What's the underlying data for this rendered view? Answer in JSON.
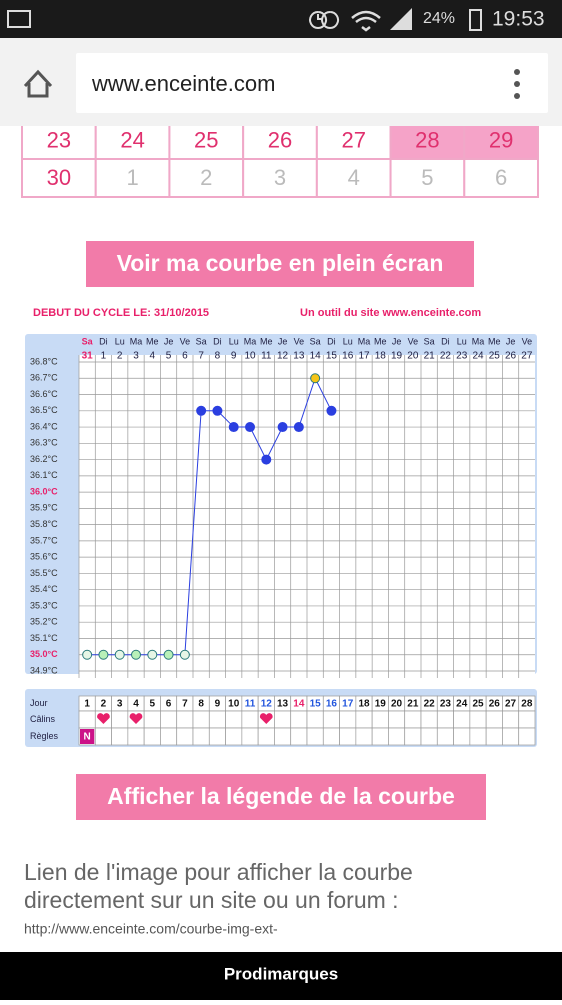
{
  "status_bar": {
    "battery": "24%",
    "time": "19:53"
  },
  "browser": {
    "url": "www.enceinte.com"
  },
  "calendar": {
    "rows": [
      [
        23,
        24,
        25,
        26,
        27,
        28,
        29
      ],
      [
        30,
        1,
        2,
        3,
        4,
        5,
        6
      ]
    ],
    "highlighted": [
      [
        0,
        5
      ],
      [
        0,
        6
      ]
    ],
    "muted": [
      [
        1,
        1
      ],
      [
        1,
        2
      ],
      [
        1,
        3
      ],
      [
        1,
        4
      ],
      [
        1,
        5
      ],
      [
        1,
        6
      ]
    ]
  },
  "buttons": [
    "Voir ma courbe en plein écran",
    "Afficher la légende de la courbe"
  ],
  "chart_data": {
    "type": "line",
    "title": "DEBUT DU CYCLE LE: 31/10/2015",
    "source": "Un outil du site www.enceinte.com",
    "day_names": [
      "Sa",
      "Di",
      "Lu",
      "Ma",
      "Me",
      "Je",
      "Ve",
      "Sa",
      "Di",
      "Lu",
      "Ma",
      "Me",
      "Je",
      "Ve",
      "Sa",
      "Di",
      "Lu",
      "Ma",
      "Me",
      "Je",
      "Ve",
      "Sa",
      "Di",
      "Lu",
      "Ma",
      "Me",
      "Je",
      "Ve"
    ],
    "categories": [
      "31",
      "1",
      "2",
      "3",
      "4",
      "5",
      "6",
      "7",
      "8",
      "9",
      "10",
      "11",
      "12",
      "13",
      "14",
      "15",
      "16",
      "17",
      "18",
      "19",
      "20",
      "21",
      "22",
      "23",
      "24",
      "25",
      "26",
      "27"
    ],
    "series": [
      {
        "color": "#2b3fe0",
        "values": [
          35.0,
          35.0,
          35.0,
          35.0,
          35.0,
          35.0,
          35.0,
          36.5,
          36.5,
          36.4,
          36.4,
          36.2,
          36.4,
          36.4,
          36.7,
          36.5,
          null,
          null,
          null,
          null,
          null,
          null,
          null,
          null,
          null,
          null,
          null,
          null
        ],
        "point_colors": [
          "#e6f6e6",
          "#b8f0b8",
          "#e6f6e6",
          "#b8f0b8",
          "#e6f6e6",
          "#b8f0b8",
          "#e6f6e6",
          "#2b3fe0",
          "#2b3fe0",
          "#2b3fe0",
          "#2b3fe0",
          "#2b3fe0",
          "#2b3fe0",
          "#2b3fe0",
          "#f5c518",
          "#2b3fe0",
          null,
          null,
          null,
          null,
          null,
          null,
          null,
          null,
          null,
          null,
          null,
          null
        ]
      }
    ],
    "ylim": [
      34.9,
      36.8
    ],
    "yticks": [
      {
        "value": 34.9,
        "label": "34.9°C"
      },
      {
        "value": 35.0,
        "label": "35.0°C"
      },
      {
        "value": 35.1,
        "label": "35.1°C"
      },
      {
        "value": 35.2,
        "label": "35.2°C"
      },
      {
        "value": 35.3,
        "label": "35.3°C"
      },
      {
        "value": 35.4,
        "label": "35.4°C"
      },
      {
        "value": 35.5,
        "label": "35.5°C"
      },
      {
        "value": 35.6,
        "label": "35.6°C"
      },
      {
        "value": 35.7,
        "label": "35.7°C"
      },
      {
        "value": 35.8,
        "label": "35.8°C"
      },
      {
        "value": 35.9,
        "label": "35.9°C"
      },
      {
        "value": 36.0,
        "label": "36.0°C"
      },
      {
        "value": 36.1,
        "label": "36.1°C"
      },
      {
        "value": 36.2,
        "label": "36.2°C"
      },
      {
        "value": 36.3,
        "label": "36.3°C"
      },
      {
        "value": 36.4,
        "label": "36.4°C"
      },
      {
        "value": 36.5,
        "label": "36.5°C"
      },
      {
        "value": 36.6,
        "label": "36.6°C"
      },
      {
        "value": 36.7,
        "label": "36.7°C"
      },
      {
        "value": 36.8,
        "label": "36.8°C"
      }
    ],
    "highlight_ticks": [
      35.0,
      36.0
    ],
    "highlight_color": "#e8206a",
    "grid": true
  },
  "cycle_table": {
    "row_labels": [
      "Jour",
      "Câlins",
      "Règles"
    ],
    "days": [
      1,
      2,
      3,
      4,
      5,
      6,
      7,
      8,
      9,
      10,
      11,
      12,
      13,
      14,
      15,
      16,
      17,
      18,
      19,
      20,
      21,
      22,
      23,
      24,
      25,
      26,
      27,
      28
    ],
    "blue_days": [
      11,
      12,
      15,
      16,
      17
    ],
    "red_days": [
      14
    ],
    "calins_days": [
      2,
      4,
      12
    ],
    "regles": {
      "day": 1,
      "label": "N"
    }
  },
  "text": {
    "paragraph": [
      "Lien de l'image pour afficher la courbe",
      "directement sur un site ou un forum :"
    ],
    "link": "http://www.enceinte.com/courbe-img-ext-"
  },
  "bottom_bar": "Prodimarques"
}
